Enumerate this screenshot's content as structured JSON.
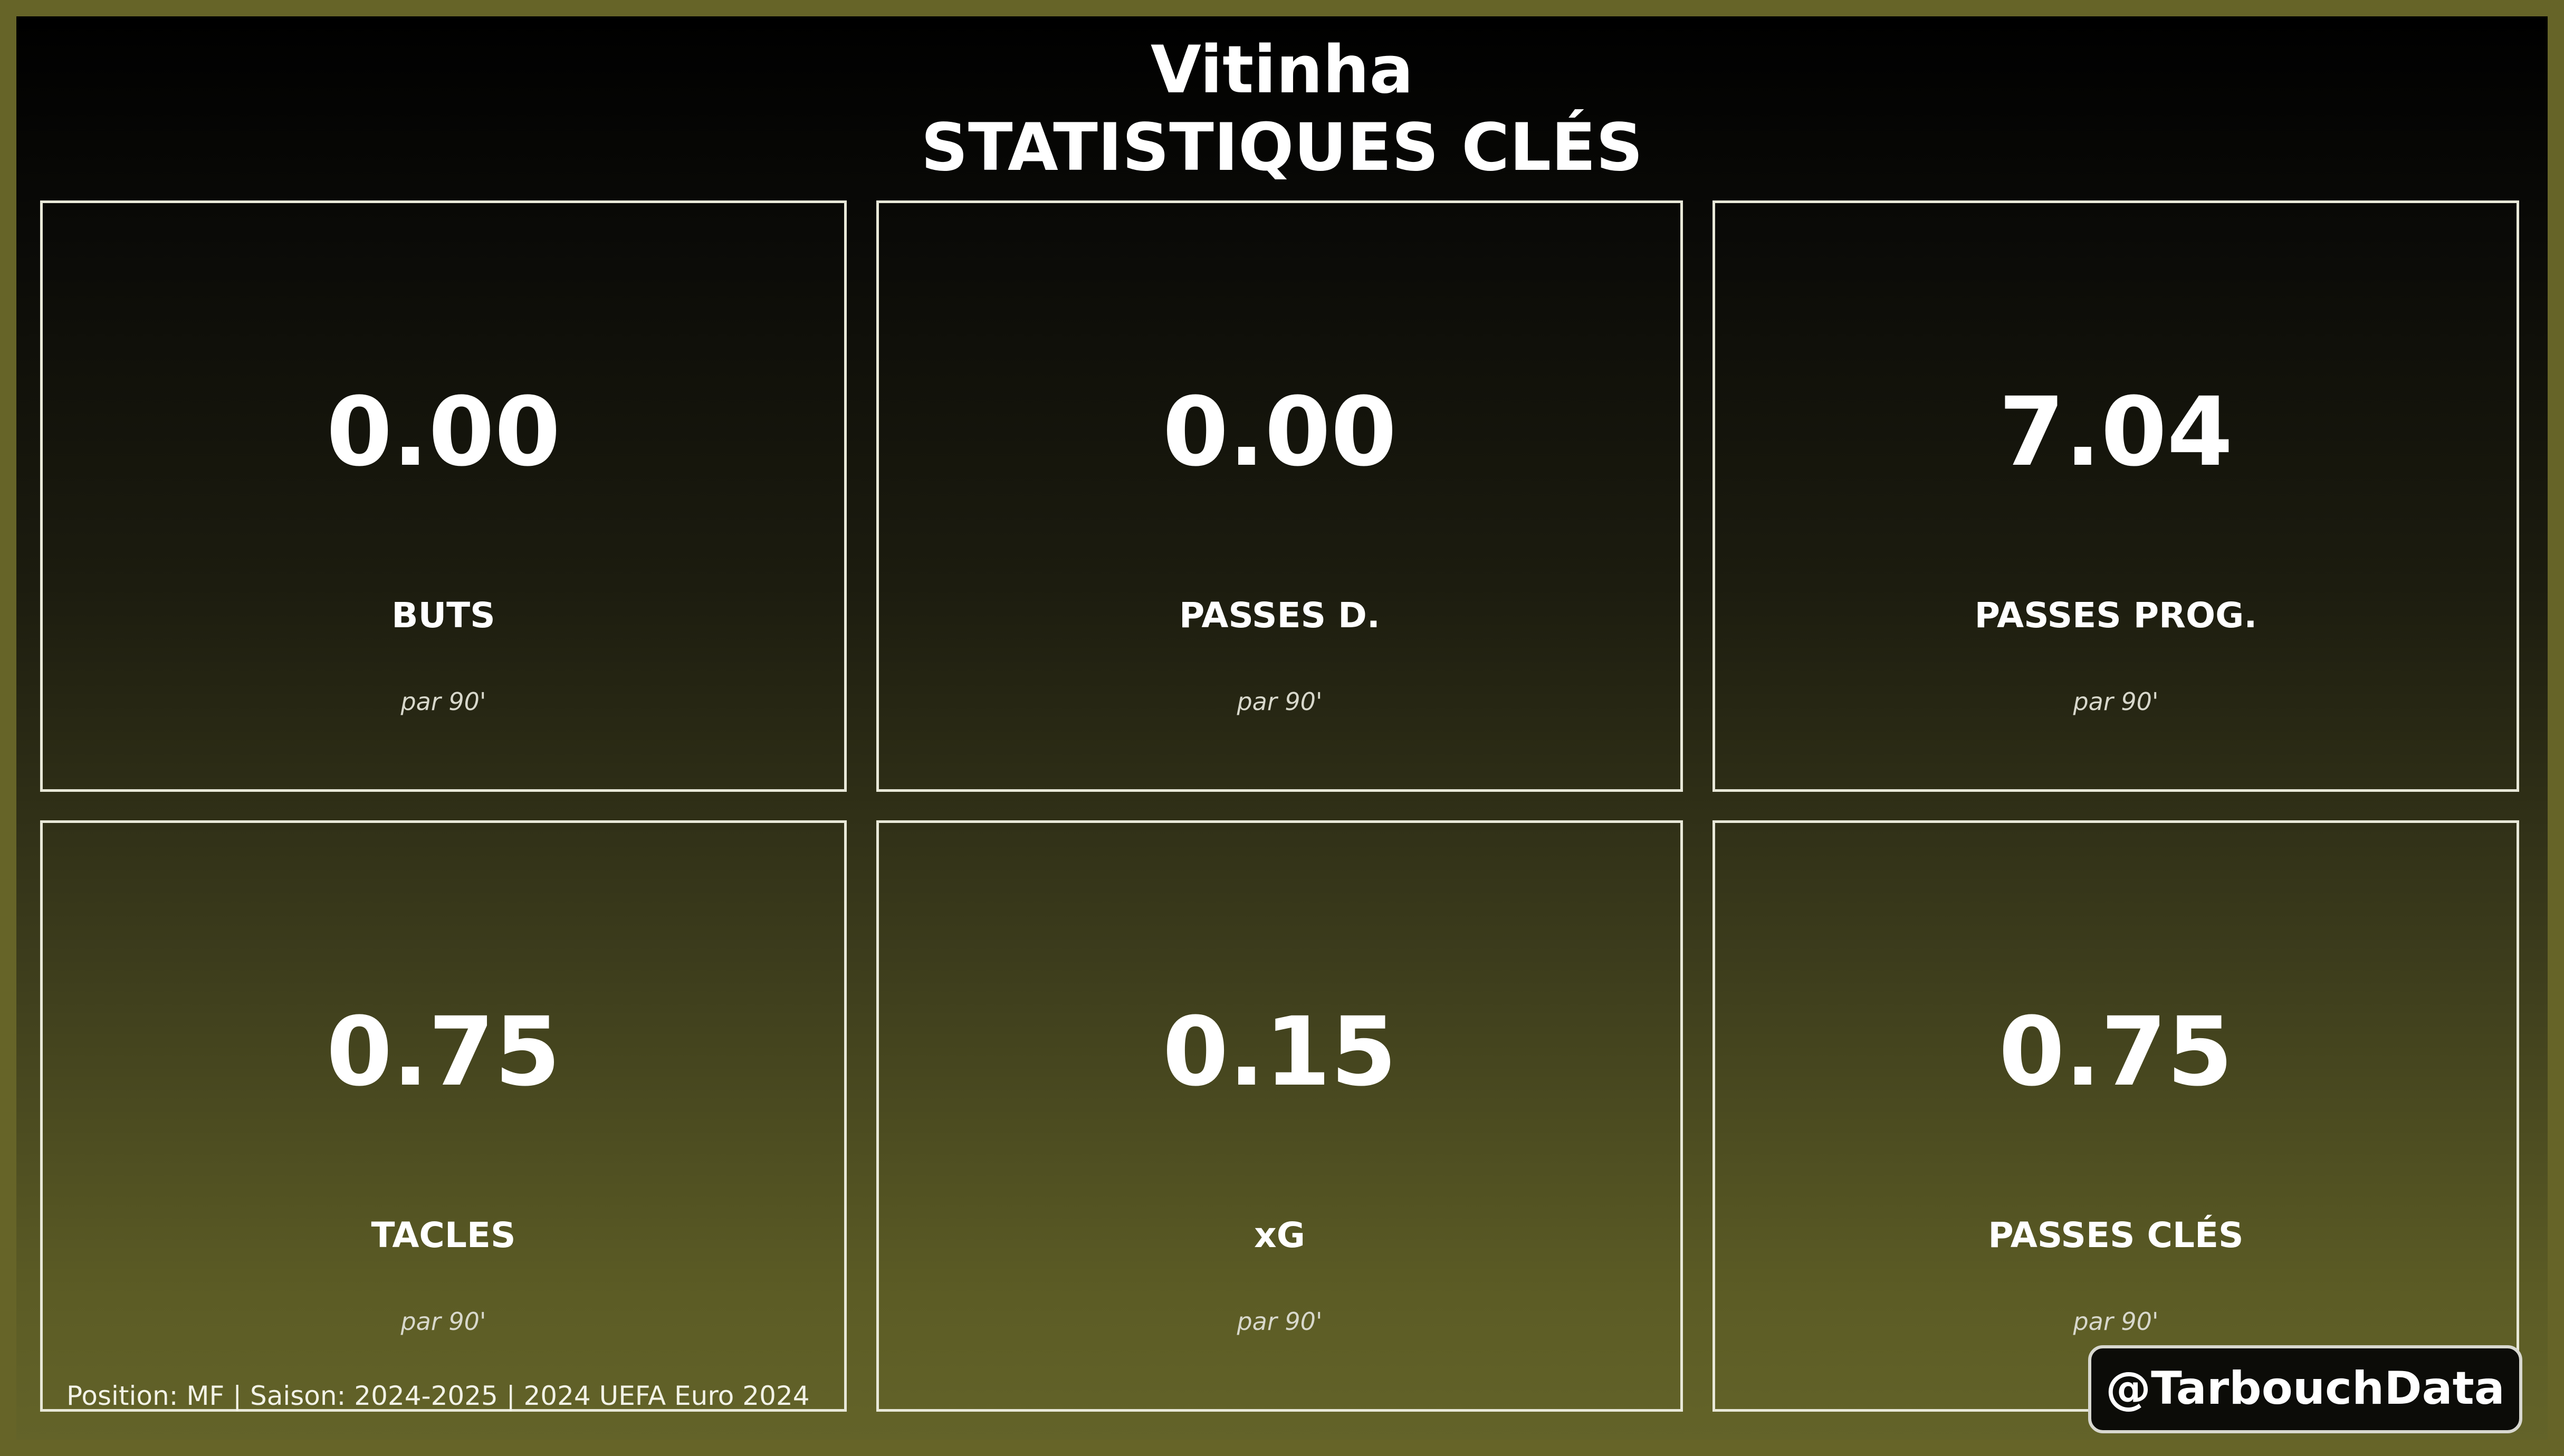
{
  "header": {
    "player_name": "Vitinha",
    "subtitle": "STATISTIQUES CLÉS"
  },
  "stats": [
    {
      "value": "0.00",
      "label": "BUTS",
      "unit": "par 90'"
    },
    {
      "value": "0.00",
      "label": "PASSES D.",
      "unit": "par 90'"
    },
    {
      "value": "7.04",
      "label": "PASSES PROG.",
      "unit": "par 90'"
    },
    {
      "value": "0.75",
      "label": "TACLES",
      "unit": "par 90'"
    },
    {
      "value": "0.15",
      "label": "xG",
      "unit": "par 90'"
    },
    {
      "value": "0.75",
      "label": "PASSES CLÉS",
      "unit": "par 90'"
    }
  ],
  "footer": {
    "info": "Position: MF | Saison: 2024-2025 | 2024 UEFA Euro 2024",
    "handle": "@TarbouchData"
  },
  "colors": {
    "outer_border": "#666428",
    "gradient_top": "#000000",
    "gradient_bottom": "#636329",
    "card_border": "#e8e8d8",
    "text": "#ffffff"
  }
}
